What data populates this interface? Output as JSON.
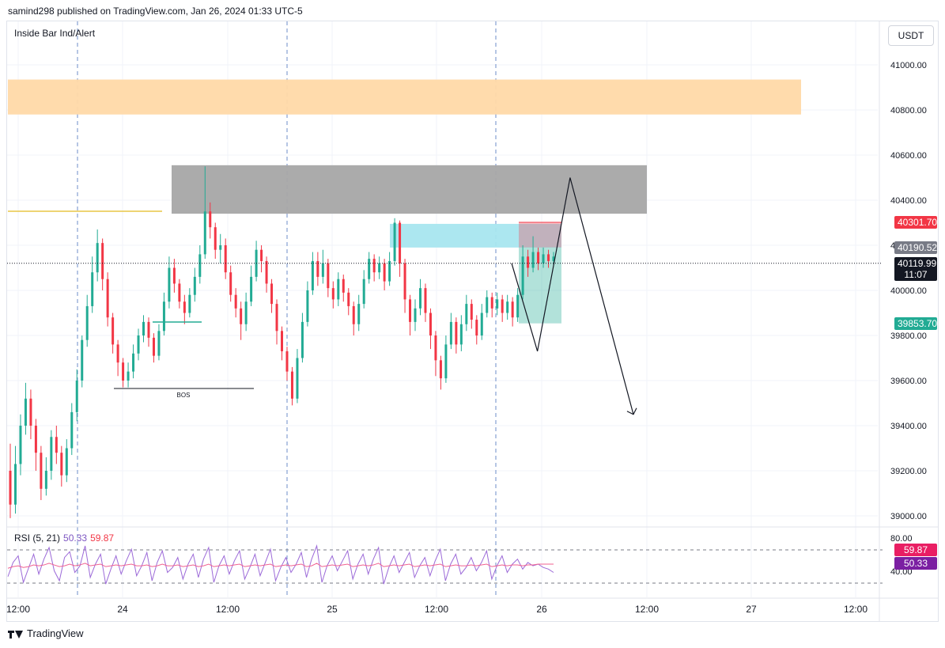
{
  "header": {
    "publisher_text": "samind298 published on TradingView.com, Jan 26, 2024 01:33 UTC-5"
  },
  "indicator": {
    "title": "Inside Bar Ind/Alert"
  },
  "currency_button": {
    "label": "USDT"
  },
  "annotations": {
    "bos_label": "BOS"
  },
  "price_tags": {
    "target": {
      "text": "40301.70",
      "color": "#f23645"
    },
    "level": {
      "text": "40190.52",
      "color": "#787b86"
    },
    "last": {
      "text": "40119.99",
      "countdown": "11:07",
      "color": "#131722"
    },
    "stop": {
      "text": "39853.70",
      "color": "#22ab94"
    }
  },
  "rsi": {
    "legend_name": "RSI (5, 21)",
    "value_fast": "50.33",
    "value_slow": "59.87",
    "tag_slow": {
      "text": "59.87",
      "color": "#e91e63"
    },
    "tag_fast": {
      "text": "50.33",
      "color": "#7b1fa2"
    },
    "levels": [
      80,
      40
    ],
    "axis_labels": [
      "80.00",
      "40.00"
    ]
  },
  "brand": {
    "label": "TradingView"
  },
  "chart_data": {
    "type": "candlestick",
    "title": "",
    "xlabel": "",
    "ylabel": "",
    "ylim": [
      38950,
      41150
    ],
    "y_ticks": [
      "41000.00",
      "40800.00",
      "40600.00",
      "40400.00",
      "40200.00",
      "40000.00",
      "39800.00",
      "39600.00",
      "39400.00",
      "39200.00",
      "39000.00"
    ],
    "x_ticks": [
      "12:00",
      "24",
      "12:00",
      "25",
      "12:00",
      "26",
      "12:00",
      "27",
      "12:00"
    ],
    "last_price": 40119.99,
    "zones": [
      {
        "kind": "supply",
        "top": 40935,
        "bottom": 40780,
        "color": "#ffd9a8"
      },
      {
        "kind": "resistance",
        "top": 40555,
        "bottom": 40340,
        "color": "#a6a6a6"
      },
      {
        "kind": "demand",
        "top": 40295,
        "bottom": 40190,
        "color": "#a8e6ef"
      }
    ],
    "position": {
      "entry": 40190.52,
      "target": 40301.7,
      "stop": 39853.7
    },
    "bos_level": 39565,
    "candles": [
      [
        39200,
        39050,
        39320,
        38990
      ],
      [
        39050,
        39230,
        39310,
        39010
      ],
      [
        39230,
        39400,
        39450,
        39180
      ],
      [
        39400,
        39520,
        39590,
        39360
      ],
      [
        39520,
        39400,
        39560,
        39340
      ],
      [
        39400,
        39280,
        39430,
        39200
      ],
      [
        39280,
        39120,
        39310,
        39070
      ],
      [
        39120,
        39200,
        39260,
        39090
      ],
      [
        39200,
        39350,
        39380,
        39160
      ],
      [
        39350,
        39280,
        39400,
        39230
      ],
      [
        39280,
        39180,
        39310,
        39130
      ],
      [
        39180,
        39300,
        39340,
        39150
      ],
      [
        39300,
        39460,
        39500,
        39270
      ],
      [
        39460,
        39600,
        39650,
        39420
      ],
      [
        39600,
        39780,
        39800,
        39570
      ],
      [
        39780,
        39930,
        39980,
        39750
      ],
      [
        39930,
        40080,
        40150,
        39900
      ],
      [
        40080,
        40210,
        40270,
        40040
      ],
      [
        40210,
        40050,
        40230,
        40000
      ],
      [
        40050,
        39880,
        40080,
        39840
      ],
      [
        39880,
        39760,
        39900,
        39720
      ],
      [
        39760,
        39680,
        39780,
        39620
      ],
      [
        39680,
        39600,
        39700,
        39570
      ],
      [
        39600,
        39640,
        39680,
        39570
      ],
      [
        39640,
        39720,
        39760,
        39610
      ],
      [
        39720,
        39800,
        39830,
        39690
      ],
      [
        39800,
        39860,
        39890,
        39770
      ],
      [
        39860,
        39790,
        39880,
        39750
      ],
      [
        39790,
        39710,
        39810,
        39680
      ],
      [
        39710,
        39820,
        39850,
        39690
      ],
      [
        39820,
        39950,
        39990,
        39800
      ],
      [
        39950,
        40100,
        40150,
        39920
      ],
      [
        40100,
        40030,
        40140,
        39990
      ],
      [
        40030,
        39950,
        40050,
        39920
      ],
      [
        39950,
        39900,
        39980,
        39850
      ],
      [
        39900,
        39980,
        40010,
        39880
      ],
      [
        39980,
        40060,
        40100,
        39950
      ],
      [
        40060,
        40160,
        40200,
        40030
      ],
      [
        40160,
        40350,
        40550,
        40140
      ],
      [
        40350,
        40280,
        40390,
        40230
      ],
      [
        40280,
        40180,
        40300,
        40140
      ],
      [
        40180,
        40200,
        40250,
        40120
      ],
      [
        40200,
        40080,
        40230,
        40050
      ],
      [
        40080,
        39980,
        40110,
        39950
      ],
      [
        39980,
        39920,
        40010,
        39880
      ],
      [
        39920,
        39850,
        39950,
        39780
      ],
      [
        39850,
        39950,
        39990,
        39820
      ],
      [
        39950,
        40060,
        40110,
        39930
      ],
      [
        40060,
        40180,
        40220,
        40040
      ],
      [
        40180,
        40130,
        40200,
        40080
      ],
      [
        40130,
        40030,
        40150,
        39990
      ],
      [
        40030,
        39940,
        40050,
        39900
      ],
      [
        39940,
        39820,
        39960,
        39760
      ],
      [
        39820,
        39730,
        39840,
        39690
      ],
      [
        39730,
        39640,
        39750,
        39600
      ],
      [
        39640,
        39520,
        39660,
        39490
      ],
      [
        39520,
        39700,
        39740,
        39500
      ],
      [
        39700,
        39860,
        39900,
        39680
      ],
      [
        39860,
        40000,
        40040,
        39840
      ],
      [
        40000,
        40130,
        40170,
        39980
      ],
      [
        40130,
        40060,
        40170,
        40020
      ],
      [
        40060,
        40120,
        40180,
        40030
      ],
      [
        40120,
        40010,
        40140,
        39970
      ],
      [
        40010,
        39960,
        40040,
        39920
      ],
      [
        39960,
        40050,
        40080,
        39930
      ],
      [
        40050,
        39990,
        40070,
        39950
      ],
      [
        39990,
        39930,
        40010,
        39890
      ],
      [
        39930,
        39850,
        39950,
        39800
      ],
      [
        39850,
        39940,
        39980,
        39820
      ],
      [
        39940,
        40050,
        40090,
        39920
      ],
      [
        40050,
        40140,
        40170,
        40030
      ],
      [
        40140,
        40080,
        40160,
        40040
      ],
      [
        40080,
        40120,
        40150,
        40050
      ],
      [
        40120,
        40040,
        40140,
        40000
      ],
      [
        40040,
        40130,
        40170,
        40020
      ],
      [
        40130,
        40300,
        40320,
        40110
      ],
      [
        40300,
        40120,
        40310,
        40060
      ],
      [
        40120,
        39960,
        40140,
        39900
      ],
      [
        39960,
        39860,
        39980,
        39800
      ],
      [
        39860,
        39920,
        39960,
        39820
      ],
      [
        39920,
        40010,
        40050,
        39890
      ],
      [
        40010,
        39900,
        40030,
        39860
      ],
      [
        39900,
        39800,
        39920,
        39740
      ],
      [
        39800,
        39690,
        39820,
        39620
      ],
      [
        39690,
        39610,
        39710,
        39560
      ],
      [
        39610,
        39760,
        39800,
        39590
      ],
      [
        39760,
        39860,
        39900,
        39740
      ],
      [
        39860,
        39760,
        39880,
        39720
      ],
      [
        39760,
        39850,
        39890,
        39730
      ],
      [
        39850,
        39940,
        39980,
        39820
      ],
      [
        39940,
        39870,
        39960,
        39830
      ],
      [
        39870,
        39800,
        39890,
        39760
      ],
      [
        39800,
        39900,
        39940,
        39780
      ],
      [
        39900,
        39970,
        40000,
        39880
      ],
      [
        39970,
        39920,
        39990,
        39880
      ],
      [
        39920,
        39960,
        39990,
        39890
      ],
      [
        39960,
        39900,
        39980,
        39860
      ],
      [
        39900,
        39950,
        39980,
        39870
      ],
      [
        39950,
        39880,
        39970,
        39840
      ],
      [
        39880,
        39980,
        40010,
        39860
      ],
      [
        39980,
        40150,
        40200,
        39960
      ],
      [
        40150,
        40100,
        40180,
        40060
      ],
      [
        40100,
        40170,
        40240,
        40080
      ],
      [
        40170,
        40120,
        40190,
        40090
      ],
      [
        40120,
        40160,
        40190,
        40100
      ],
      [
        40160,
        40130,
        40180,
        40100
      ],
      [
        40130,
        40150,
        40170,
        40110
      ]
    ],
    "projection": [
      {
        "x_frac": 0.5795,
        "y": 40120
      },
      {
        "x_frac": 0.6091,
        "y": 39730
      },
      {
        "x_frac": 0.6466,
        "y": 40500
      },
      {
        "x_frac": 0.7193,
        "y": 39450
      }
    ],
    "rsi_fast": [
      45,
      62,
      70,
      38,
      55,
      72,
      48,
      66,
      80,
      52,
      40,
      68,
      75,
      50,
      58,
      82,
      44,
      60,
      72,
      36,
      54,
      70,
      48,
      64,
      78,
      46,
      58,
      74,
      40,
      62,
      76,
      50,
      56,
      68,
      42,
      60,
      72,
      44,
      66,
      80,
      38,
      58,
      70,
      48,
      64,
      76,
      42,
      56,
      72,
      46,
      62,
      78,
      40,
      56,
      68,
      50,
      60,
      74,
      44,
      66,
      82,
      38,
      58,
      70,
      52,
      64,
      76,
      42,
      60,
      72,
      48,
      66,
      80,
      36,
      56,
      70,
      50,
      62,
      74,
      44,
      58,
      68,
      46,
      64,
      78,
      40,
      60,
      72,
      48,
      56,
      68,
      52,
      62,
      76,
      42,
      58,
      70,
      50,
      60,
      66,
      54,
      62,
      58,
      60,
      56,
      54,
      50
    ],
    "rsi_slow": [
      55,
      57,
      58,
      56,
      57,
      59,
      58,
      59,
      61,
      59,
      57,
      58,
      60,
      58,
      59,
      61,
      58,
      59,
      60,
      57,
      58,
      59,
      58,
      59,
      60,
      58,
      58,
      59,
      57,
      58,
      60,
      58,
      58,
      59,
      57,
      58,
      59,
      57,
      58,
      60,
      57,
      58,
      59,
      58,
      59,
      60,
      57,
      58,
      59,
      58,
      59,
      60,
      57,
      58,
      59,
      58,
      59,
      60,
      57,
      58,
      61,
      57,
      58,
      59,
      58,
      59,
      60,
      57,
      58,
      59,
      58,
      59,
      61,
      57,
      58,
      59,
      58,
      59,
      60,
      57,
      58,
      59,
      58,
      59,
      60,
      57,
      58,
      59,
      58,
      58,
      59,
      58,
      59,
      60,
      57,
      58,
      59,
      58,
      59,
      59,
      58,
      59,
      59,
      60,
      60,
      60,
      60
    ]
  }
}
